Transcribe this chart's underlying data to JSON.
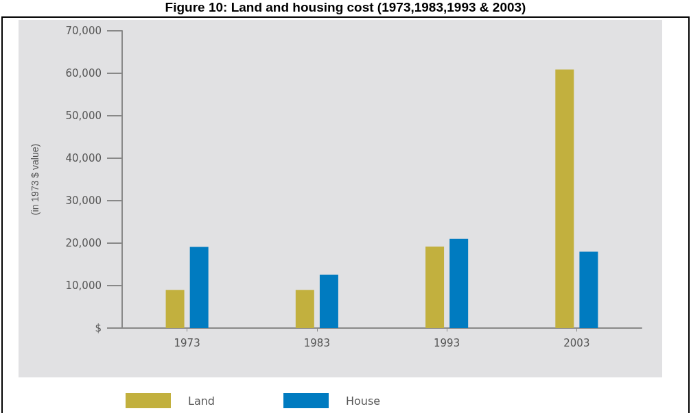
{
  "chart_data": {
    "type": "bar",
    "title": "Figure 10: Land and housing cost (1973,1983,1993 & 2003)",
    "ylabel": "(in 1973 $ value)",
    "categories": [
      "1973",
      "1983",
      "1993",
      "2003"
    ],
    "series": [
      {
        "name": "Land",
        "color": "#c2b03e",
        "values": [
          9000,
          9000,
          19200,
          60900
        ]
      },
      {
        "name": "House",
        "color": "#007bc0",
        "values": [
          19100,
          12600,
          21000,
          18000
        ]
      }
    ],
    "ylim": [
      0,
      70000
    ],
    "yticks": [
      {
        "value": 0,
        "label": "$"
      },
      {
        "value": 10000,
        "label": "10,000"
      },
      {
        "value": 20000,
        "label": "20,000"
      },
      {
        "value": 30000,
        "label": "30,000"
      },
      {
        "value": 40000,
        "label": "40,000"
      },
      {
        "value": 50000,
        "label": "50,000"
      },
      {
        "value": 60000,
        "label": "60,000"
      },
      {
        "value": 70000,
        "label": "70,000"
      }
    ],
    "grid": false,
    "legend": "bottom"
  }
}
